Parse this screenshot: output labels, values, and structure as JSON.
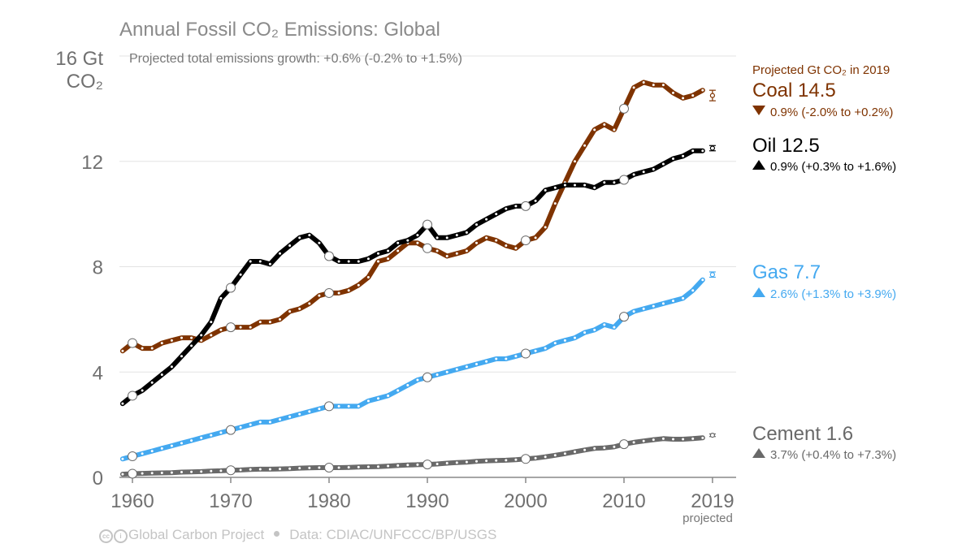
{
  "chart_data": {
    "type": "line",
    "title": "Annual Fossil CO₂ Emissions: Global",
    "subtitle": "Projected total emissions growth: +0.6% (-0.2% to +1.5%)",
    "ylabel_line1": "16 Gt",
    "ylabel_line2": "CO₂",
    "y_ticks": [
      "0",
      "4",
      "8",
      "12"
    ],
    "x_ticks": [
      "1960",
      "1970",
      "1980",
      "1990",
      "2000",
      "2010",
      "2019"
    ],
    "x_tick_sub": "projected",
    "xlim": [
      1959,
      2020
    ],
    "ylim": [
      0,
      16
    ],
    "grid": true,
    "projection_header": "Projected Gt CO₂ in 2019",
    "x": [
      1959,
      1960,
      1961,
      1962,
      1963,
      1964,
      1965,
      1966,
      1967,
      1968,
      1969,
      1970,
      1971,
      1972,
      1973,
      1974,
      1975,
      1976,
      1977,
      1978,
      1979,
      1980,
      1981,
      1982,
      1983,
      1984,
      1985,
      1986,
      1987,
      1988,
      1989,
      1990,
      1991,
      1992,
      1993,
      1994,
      1995,
      1996,
      1997,
      1998,
      1999,
      2000,
      2001,
      2002,
      2003,
      2004,
      2005,
      2006,
      2007,
      2008,
      2009,
      2010,
      2011,
      2012,
      2013,
      2014,
      2015,
      2016,
      2017,
      2018
    ],
    "series": [
      {
        "name": "Coal",
        "value_label": "Coal 14.5",
        "change": "0.9% (-2.0% to +0.2%)",
        "direction": "down",
        "color": "#7f3300",
        "projection": 14.5,
        "proj_low": 14.3,
        "proj_high": 14.7,
        "values": [
          4.8,
          5.1,
          4.9,
          4.9,
          5.1,
          5.2,
          5.3,
          5.3,
          5.2,
          5.4,
          5.6,
          5.7,
          5.7,
          5.7,
          5.9,
          5.9,
          6.0,
          6.3,
          6.4,
          6.6,
          6.9,
          7.0,
          7.0,
          7.1,
          7.3,
          7.6,
          8.2,
          8.3,
          8.6,
          8.9,
          8.9,
          8.7,
          8.6,
          8.4,
          8.5,
          8.6,
          8.9,
          9.1,
          9.0,
          8.8,
          8.7,
          9.0,
          9.1,
          9.5,
          10.4,
          11.2,
          12.0,
          12.6,
          13.2,
          13.4,
          13.2,
          14.0,
          14.8,
          15.0,
          14.9,
          14.9,
          14.6,
          14.4,
          14.5,
          14.7
        ]
      },
      {
        "name": "Oil",
        "value_label": "Oil 12.5",
        "change": "0.9% (+0.3% to +1.6%)",
        "direction": "up",
        "color": "#000000",
        "projection": 12.5,
        "proj_low": 12.4,
        "proj_high": 12.6,
        "values": [
          2.8,
          3.1,
          3.3,
          3.6,
          3.9,
          4.2,
          4.6,
          5.0,
          5.4,
          5.9,
          6.8,
          7.2,
          7.7,
          8.2,
          8.2,
          8.1,
          8.5,
          8.8,
          9.1,
          9.2,
          8.9,
          8.4,
          8.2,
          8.2,
          8.2,
          8.3,
          8.5,
          8.6,
          8.9,
          9.0,
          9.2,
          9.6,
          9.1,
          9.1,
          9.2,
          9.3,
          9.6,
          9.8,
          10.0,
          10.2,
          10.3,
          10.3,
          10.5,
          10.9,
          11.0,
          11.1,
          11.1,
          11.1,
          11.0,
          11.2,
          11.2,
          11.3,
          11.5,
          11.6,
          11.7,
          11.9,
          12.1,
          12.2,
          12.4,
          12.4
        ]
      },
      {
        "name": "Gas",
        "value_label": "Gas 7.7",
        "change": "2.6% (+1.3% to +3.9%)",
        "direction": "up",
        "color": "#44a9f0",
        "projection": 7.7,
        "proj_low": 7.6,
        "proj_high": 7.8,
        "values": [
          0.7,
          0.8,
          0.9,
          1.0,
          1.1,
          1.2,
          1.3,
          1.4,
          1.5,
          1.6,
          1.7,
          1.8,
          1.9,
          2.0,
          2.1,
          2.1,
          2.2,
          2.3,
          2.4,
          2.5,
          2.6,
          2.7,
          2.7,
          2.7,
          2.7,
          2.9,
          3.0,
          3.1,
          3.3,
          3.5,
          3.7,
          3.8,
          3.9,
          4.0,
          4.1,
          4.2,
          4.3,
          4.4,
          4.5,
          4.5,
          4.6,
          4.7,
          4.8,
          4.9,
          5.1,
          5.2,
          5.3,
          5.5,
          5.6,
          5.8,
          5.7,
          6.1,
          6.3,
          6.4,
          6.5,
          6.6,
          6.7,
          6.8,
          7.1,
          7.5
        ]
      },
      {
        "name": "Cement",
        "value_label": "Cement 1.6",
        "change": "3.7% (+0.4% to +7.3%)",
        "direction": "up",
        "color": "#696969",
        "projection": 1.6,
        "proj_low": 1.55,
        "proj_high": 1.65,
        "values": [
          0.12,
          0.14,
          0.15,
          0.16,
          0.17,
          0.18,
          0.2,
          0.21,
          0.22,
          0.24,
          0.25,
          0.27,
          0.28,
          0.3,
          0.31,
          0.31,
          0.32,
          0.33,
          0.35,
          0.36,
          0.37,
          0.37,
          0.37,
          0.38,
          0.39,
          0.4,
          0.41,
          0.43,
          0.45,
          0.47,
          0.48,
          0.49,
          0.51,
          0.54,
          0.56,
          0.58,
          0.61,
          0.63,
          0.64,
          0.65,
          0.67,
          0.7,
          0.73,
          0.78,
          0.84,
          0.9,
          0.97,
          1.04,
          1.1,
          1.12,
          1.16,
          1.26,
          1.33,
          1.38,
          1.43,
          1.47,
          1.45,
          1.45,
          1.47,
          1.5
        ]
      }
    ],
    "marker_years": [
      1960,
      1970,
      1980,
      1990,
      2000,
      2010
    ]
  },
  "footer": {
    "project": "Global Carbon Project",
    "data_source": "Data: CDIAC/UNFCCC/BP/USGS"
  }
}
